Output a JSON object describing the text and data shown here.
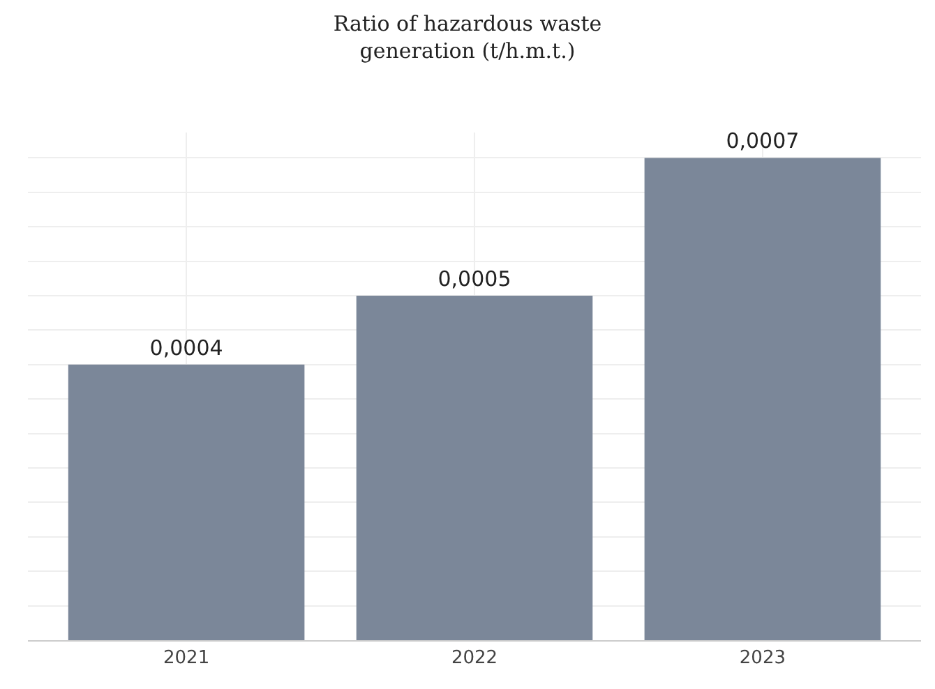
{
  "chart_data": {
    "type": "bar",
    "title": "Ratio of hazardous waste\ngeneration (t/h.m.t.)",
    "categories": [
      "2021",
      "2022",
      "2023"
    ],
    "values": [
      0.0004,
      0.0005,
      0.0007
    ],
    "value_labels": [
      "0,0004",
      "0,0005",
      "0,0007"
    ],
    "color": "#7b8799",
    "grid": true,
    "tick_labels": "x",
    "legend": false
  }
}
